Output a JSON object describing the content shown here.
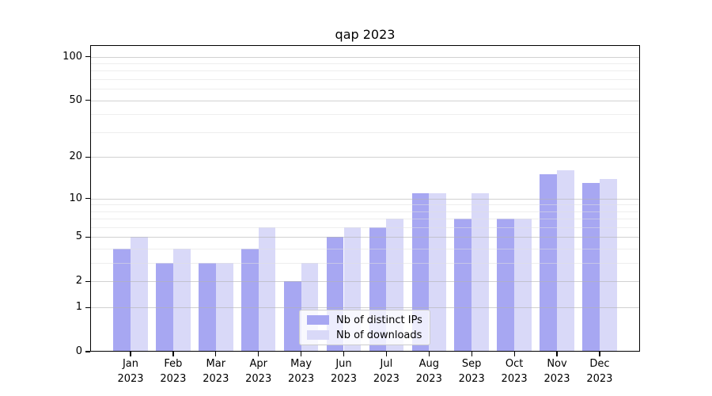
{
  "chart_data": {
    "type": "bar",
    "title": "qap 2023",
    "categories": [
      "Jan",
      "Feb",
      "Mar",
      "Apr",
      "May",
      "Jun",
      "Jul",
      "Aug",
      "Sep",
      "Oct",
      "Nov",
      "Dec"
    ],
    "year": "2023",
    "series": [
      {
        "name": "Nb of distinct IPs",
        "color": "#a7a7f2",
        "values": [
          4,
          3,
          3,
          4,
          2,
          5,
          6,
          11,
          7,
          7,
          15,
          13
        ]
      },
      {
        "name": "Nb of downloads",
        "color": "#d9d9f8",
        "values": [
          5,
          4,
          3,
          6,
          3,
          6,
          7,
          11,
          11,
          7,
          16,
          14
        ]
      }
    ],
    "yscale": "log1p",
    "ylim": [
      0,
      120
    ],
    "yticks": [
      0,
      1,
      2,
      5,
      10,
      20,
      50,
      100
    ],
    "yticks_minor": [
      3,
      4,
      6,
      7,
      8,
      9,
      30,
      40,
      60,
      70,
      80,
      90
    ],
    "xlabel": "",
    "ylabel": "",
    "grid": "horizontal",
    "legend_position": "lower center",
    "grid_major_color": "#d2d2d2",
    "grid_minor_color": "#efefef",
    "spine_color": "#000000",
    "background_color": "#ffffff"
  }
}
